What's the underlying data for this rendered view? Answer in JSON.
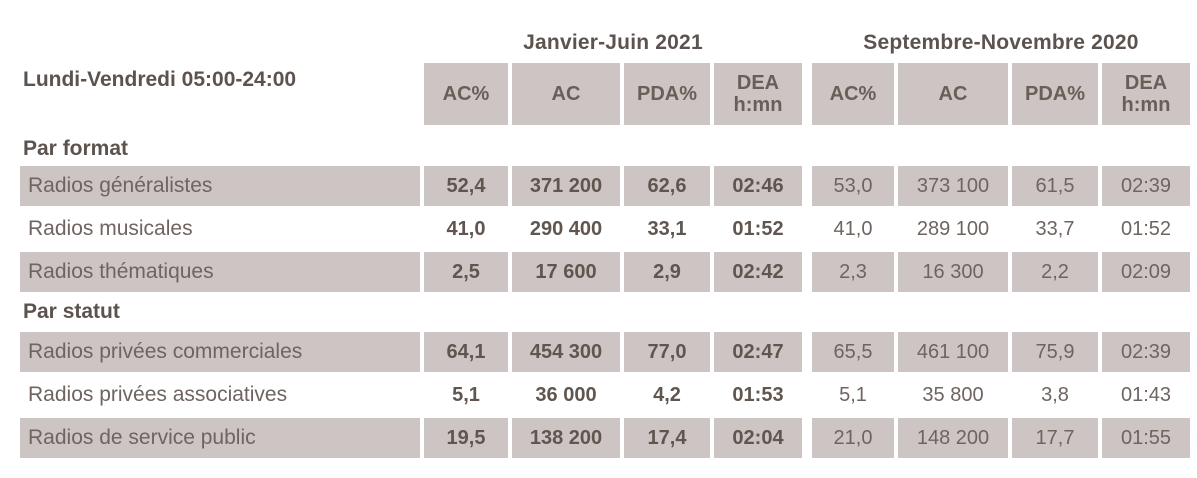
{
  "colors": {
    "cell_background": "#ccc5c3",
    "text_regular": "#6f6460",
    "text_bold": "#5d534e",
    "page_background": "#ffffff"
  },
  "table": {
    "period_label": "Lundi-Vendredi 05:00-24:00",
    "groups": [
      {
        "title": "Janvier-Juin 2021"
      },
      {
        "title": "Septembre-Novembre 2020"
      }
    ],
    "columns": [
      "AC%",
      "AC",
      "PDA%",
      "DEA"
    ],
    "dea_unit": "h:mn",
    "sections": [
      {
        "title": "Par format",
        "rows": [
          {
            "label": "Radios généralistes",
            "jan_jun_2021": [
              "52,4",
              "371 200",
              "62,6",
              "02:46"
            ],
            "sep_nov_2020": [
              "53,0",
              "373 100",
              "61,5",
              "02:39"
            ]
          },
          {
            "label": "Radios musicales",
            "jan_jun_2021": [
              "41,0",
              "290 400",
              "33,1",
              "01:52"
            ],
            "sep_nov_2020": [
              "41,0",
              "289 100",
              "33,7",
              "01:52"
            ]
          },
          {
            "label": "Radios thématiques",
            "jan_jun_2021": [
              "2,5",
              "17 600",
              "2,9",
              "02:42"
            ],
            "sep_nov_2020": [
              "2,3",
              "16 300",
              "2,2",
              "02:09"
            ]
          }
        ]
      },
      {
        "title": "Par statut",
        "rows": [
          {
            "label": "Radios privées commerciales",
            "jan_jun_2021": [
              "64,1",
              "454 300",
              "77,0",
              "02:47"
            ],
            "sep_nov_2020": [
              "65,5",
              "461 100",
              "75,9",
              "02:39"
            ]
          },
          {
            "label": "Radios privées associatives",
            "jan_jun_2021": [
              "5,1",
              "36 000",
              "4,2",
              "01:53"
            ],
            "sep_nov_2020": [
              "5,1",
              "35 800",
              "3,8",
              "01:43"
            ]
          },
          {
            "label": "Radios de service public",
            "jan_jun_2021": [
              "19,5",
              "138 200",
              "17,4",
              "02:04"
            ],
            "sep_nov_2020": [
              "21,0",
              "148 200",
              "17,7",
              "01:55"
            ]
          }
        ]
      }
    ]
  }
}
